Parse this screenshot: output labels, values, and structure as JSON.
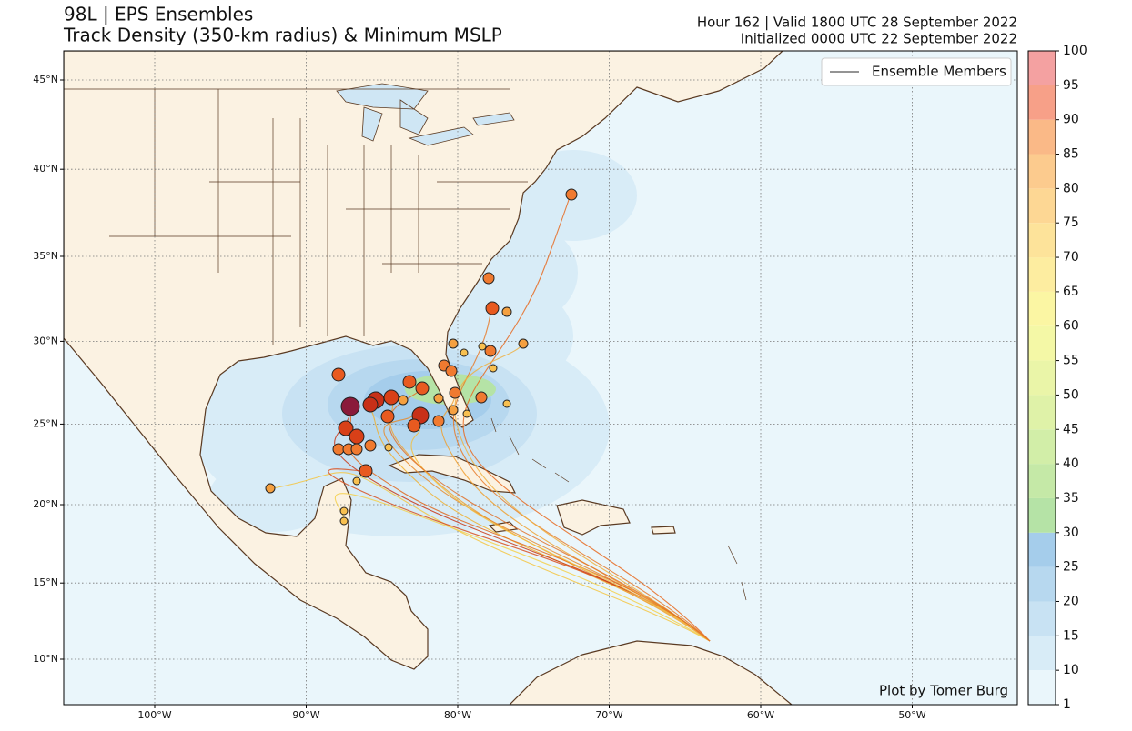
{
  "header": {
    "title": "98L | EPS Ensembles",
    "subtitle": "Track Density (350-km radius) & Minimum MSLP",
    "valid": "Hour 162 | Valid 1800 UTC 28 September 2022",
    "init": "Initialized 0000 UTC 22 September 2022"
  },
  "map": {
    "lat_ticks": [
      {
        "value": 10,
        "label": "10°N"
      },
      {
        "value": 15,
        "label": "15°N"
      },
      {
        "value": 20,
        "label": "20°N"
      },
      {
        "value": 25,
        "label": "25°N"
      },
      {
        "value": 30,
        "label": "30°N"
      },
      {
        "value": 35,
        "label": "35°N"
      },
      {
        "value": 40,
        "label": "40°N"
      },
      {
        "value": 45,
        "label": "45°N"
      }
    ],
    "lon_ticks": [
      {
        "value": -100,
        "label": "100°W"
      },
      {
        "value": -90,
        "label": "90°W"
      },
      {
        "value": -80,
        "label": "80°W"
      },
      {
        "value": -70,
        "label": "70°W"
      },
      {
        "value": -60,
        "label": "60°W"
      },
      {
        "value": -50,
        "label": "50°W"
      }
    ],
    "grid": true
  },
  "legend": {
    "label": "Ensemble Members",
    "color": "#555555"
  },
  "colorbar": {
    "ticks": [
      1,
      10,
      15,
      20,
      25,
      30,
      35,
      40,
      45,
      50,
      55,
      60,
      65,
      70,
      75,
      80,
      85,
      90,
      95,
      100
    ],
    "colors": [
      "#eaf6fb",
      "#d8ecf7",
      "#c8e2f3",
      "#b7d8ef",
      "#a5cdeb",
      "#b5e3a6",
      "#c5e9a7",
      "#d2eea8",
      "#dff2a8",
      "#eaf5a8",
      "#f4f8a6",
      "#fbf6a3",
      "#fdeda0",
      "#fde39a",
      "#fdd794",
      "#fccb8e",
      "#fab987",
      "#f7a088",
      "#f4a1a1"
    ]
  },
  "credit": "Plot by Tomer Burg"
}
